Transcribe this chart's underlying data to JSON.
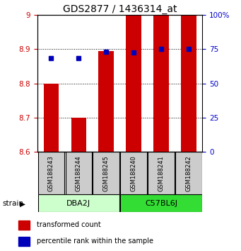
{
  "title": "GDS2877 / 1436314_at",
  "samples": [
    "GSM188243",
    "GSM188244",
    "GSM188245",
    "GSM188240",
    "GSM188241",
    "GSM188242"
  ],
  "bar_values": [
    8.8,
    8.7,
    8.895,
    9.01,
    9.01,
    9.01
  ],
  "bar_bottom": 8.6,
  "blue_dots": [
    8.875,
    8.875,
    8.893,
    8.891,
    8.9,
    8.9
  ],
  "ylim": [
    8.6,
    9.0
  ],
  "yticks_left": [
    8.6,
    8.7,
    8.8,
    8.9,
    9.0
  ],
  "ytick_labels_left": [
    "8.6",
    "8.7",
    "8.8",
    "8.9",
    "9"
  ],
  "yticks_right": [
    0,
    25,
    50,
    75,
    100
  ],
  "ytick_labels_right": [
    "0",
    "25",
    "50",
    "75",
    "100%"
  ],
  "right_ylim": [
    0,
    100
  ],
  "bar_color": "#cc0000",
  "dot_color": "#0000bb",
  "groups": [
    {
      "label": "DBA2J",
      "indices": [
        0,
        1,
        2
      ],
      "color": "#ccffcc"
    },
    {
      "label": "C57BL6J",
      "indices": [
        3,
        4,
        5
      ],
      "color": "#33dd33"
    }
  ],
  "title_fontsize": 10,
  "left_tick_color": "#cc0000",
  "right_tick_color": "#0000cc",
  "bar_width": 0.55,
  "sample_box_color": "#cccccc",
  "legend_red_label": "transformed count",
  "legend_blue_label": "percentile rank within the sample",
  "strain_label": "strain"
}
